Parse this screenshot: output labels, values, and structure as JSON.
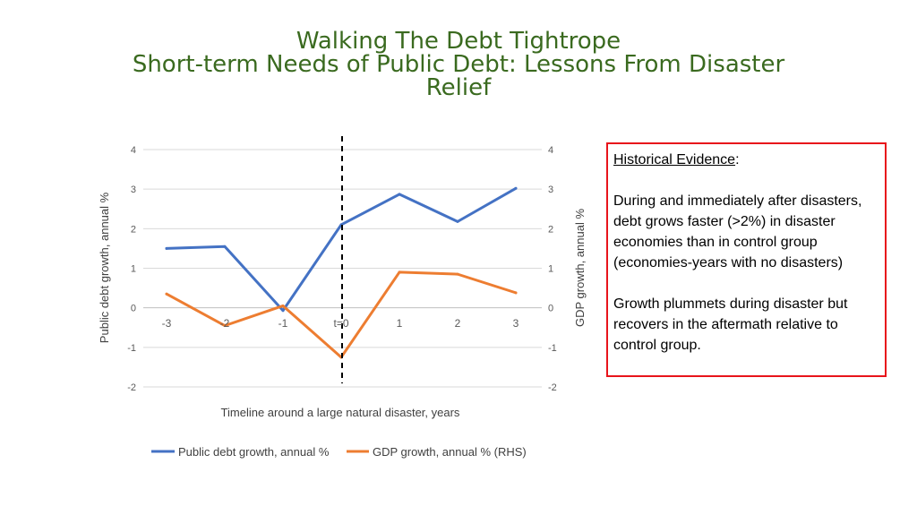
{
  "title_line1": "Walking The Debt Tightrope",
  "title_line2": "Short-term Needs of Public Debt: Lessons From Disaster Relief",
  "evidence": {
    "heading": "Historical Evidence",
    "heading_suffix": ":",
    "paragraph1": "During and immediately after disasters, debt grows faster (>2%) in disaster economies than in control group (economies-years with no disasters)",
    "paragraph2": "Growth plummets during disaster  but recovers in the aftermath relative to control group."
  },
  "chart_data": {
    "type": "line",
    "categories": [
      "-3",
      "-2",
      "-1",
      "t=0",
      "1",
      "2",
      "3"
    ],
    "series": [
      {
        "name": "Public debt growth, annual %",
        "axis": "left",
        "color": "#4472c4",
        "values": [
          1.5,
          1.55,
          -0.07,
          2.1,
          2.87,
          2.18,
          3.02
        ]
      },
      {
        "name": "GDP growth, annual % (RHS)",
        "axis": "right",
        "color": "#ed7d31",
        "values": [
          0.35,
          -0.45,
          0.05,
          -1.25,
          0.9,
          0.85,
          0.38
        ]
      }
    ],
    "xlabel": "Timeline around a large natural disaster, years",
    "ylabel_left": "Public debt growth, annual %",
    "ylabel_right": "GDP growth, annual %",
    "ylim": [
      -2,
      4
    ],
    "yticks": [
      "4",
      "3",
      "2",
      "1",
      "0",
      "-1",
      "-2"
    ],
    "vertical_marker_category": "t=0",
    "grid": true,
    "legend_position": "bottom"
  }
}
